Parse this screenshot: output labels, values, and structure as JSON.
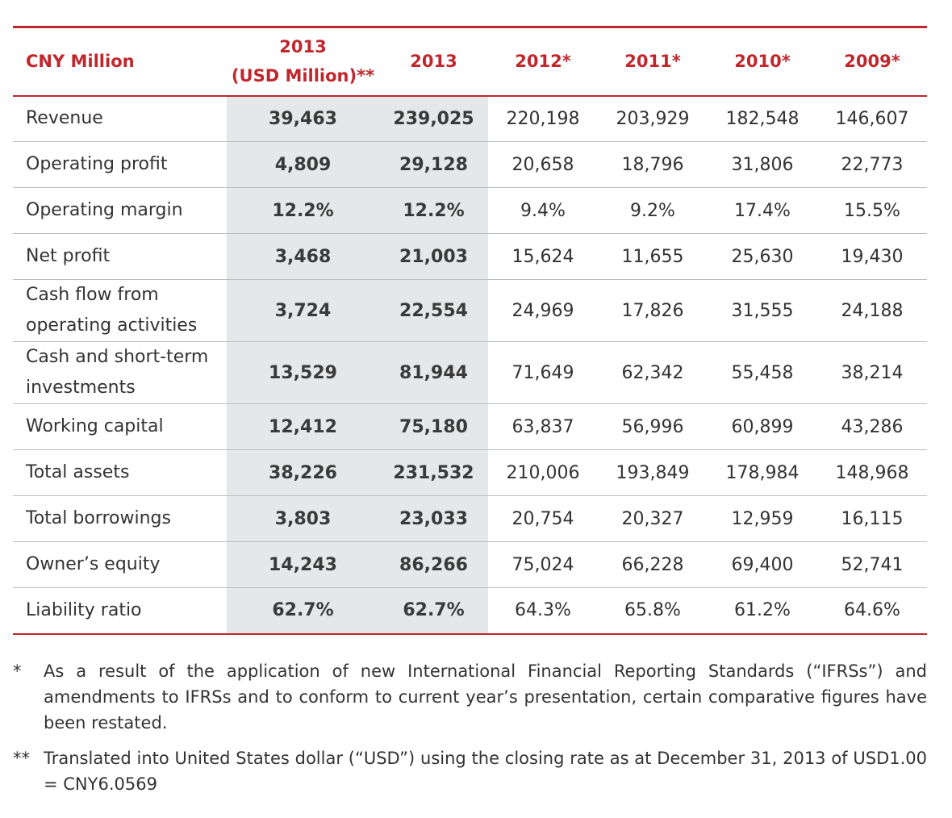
{
  "header": {
    "label": "CNY Million",
    "usd_line1": "2013",
    "usd_line2": "(USD Million)**",
    "years": [
      "2013",
      "2012*",
      "2011*",
      "2010*",
      "2009*"
    ]
  },
  "rows": [
    {
      "label": "Revenue",
      "values": [
        "39,463",
        "239,025",
        "220,198",
        "203,929",
        "182,548",
        "146,607"
      ]
    },
    {
      "label": "Operating profit",
      "values": [
        "4,809",
        "29,128",
        "20,658",
        "18,796",
        "31,806",
        "22,773"
      ]
    },
    {
      "label": "Operating margin",
      "values": [
        "12.2%",
        "12.2%",
        "9.4%",
        "9.2%",
        "17.4%",
        "15.5%"
      ]
    },
    {
      "label": "Net profit",
      "values": [
        "3,468",
        "21,003",
        "15,624",
        "11,655",
        "25,630",
        "19,430"
      ]
    },
    {
      "label": "Cash flow from operating activities",
      "values": [
        "3,724",
        "22,554",
        "24,969",
        "17,826",
        "31,555",
        "24,188"
      ]
    },
    {
      "label": "Cash and short-term investments",
      "values": [
        "13,529",
        "81,944",
        "71,649",
        "62,342",
        "55,458",
        "38,214"
      ]
    },
    {
      "label": "Working capital",
      "values": [
        "12,412",
        "75,180",
        "63,837",
        "56,996",
        "60,899",
        "43,286"
      ]
    },
    {
      "label": "Total assets",
      "values": [
        "38,226",
        "231,532",
        "210,006",
        "193,849",
        "178,984",
        "148,968"
      ]
    },
    {
      "label": "Total borrowings",
      "values": [
        "3,803",
        "23,033",
        "20,754",
        "20,327",
        "12,959",
        "16,115"
      ]
    },
    {
      "label": "Owner’s equity",
      "values": [
        "14,243",
        "86,266",
        "75,024",
        "66,228",
        "69,400",
        "52,741"
      ]
    },
    {
      "label": "Liability ratio",
      "values": [
        "62.7%",
        "62.7%",
        "64.3%",
        "65.8%",
        "61.2%",
        "64.6%"
      ]
    }
  ],
  "notes": [
    {
      "mark": "*",
      "text": "As a result of the application of new International Financial Reporting Standards (“IFRSs”) and amendments to IFRSs and to conform to current year’s presentation, certain comparative figures have been restated."
    },
    {
      "mark": "**",
      "text": "Translated into United States dollar (“USD”) using the closing rate as at December 31, 2013 of USD1.00 = CNY6.0569"
    }
  ],
  "colors": {
    "accent": "#c0272d",
    "highlight": "#e6e7e8"
  }
}
